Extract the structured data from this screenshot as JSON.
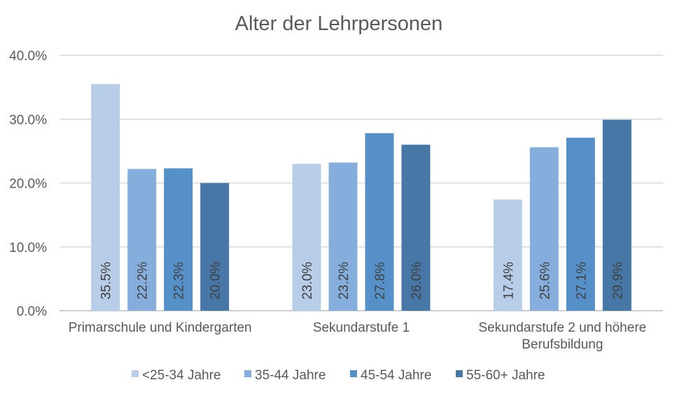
{
  "chart_data": {
    "type": "bar",
    "title": "Alter der Lehrpersonen",
    "categories": [
      [
        "Primarschule und Kindergarten"
      ],
      [
        "Sekundarstufe 1"
      ],
      [
        "Sekundarstufe 2 und höhere",
        "Berufsbildung"
      ]
    ],
    "series": [
      {
        "name": "<25-34 Jahre",
        "color": "#B8CDE8",
        "values": [
          35.5,
          23.0,
          17.4
        ],
        "labels": [
          "35.5%",
          "23.0%",
          "17.4%"
        ]
      },
      {
        "name": "35-44 Jahre",
        "color": "#86AEDC",
        "values": [
          22.2,
          23.2,
          25.6
        ],
        "labels": [
          "22.2%",
          "23.2%",
          "25.6%"
        ]
      },
      {
        "name": "45-54 Jahre",
        "color": "#5591C8",
        "values": [
          22.3,
          27.8,
          27.1
        ],
        "labels": [
          "22.3%",
          "27.8%",
          "27.1%"
        ]
      },
      {
        "name": "55-60+ Jahre",
        "color": "#4677A6",
        "values": [
          20.0,
          26.0,
          29.9
        ],
        "labels": [
          "20.0%",
          "26.0%",
          "29.9%"
        ]
      }
    ],
    "ylim": [
      0,
      40
    ],
    "yticks": [
      0,
      10,
      20,
      30,
      40
    ],
    "ytick_labels": [
      "0.0%",
      "10.0%",
      "20.0%",
      "30.0%",
      "40.0%"
    ],
    "grid": true,
    "legend_position": "bottom"
  }
}
